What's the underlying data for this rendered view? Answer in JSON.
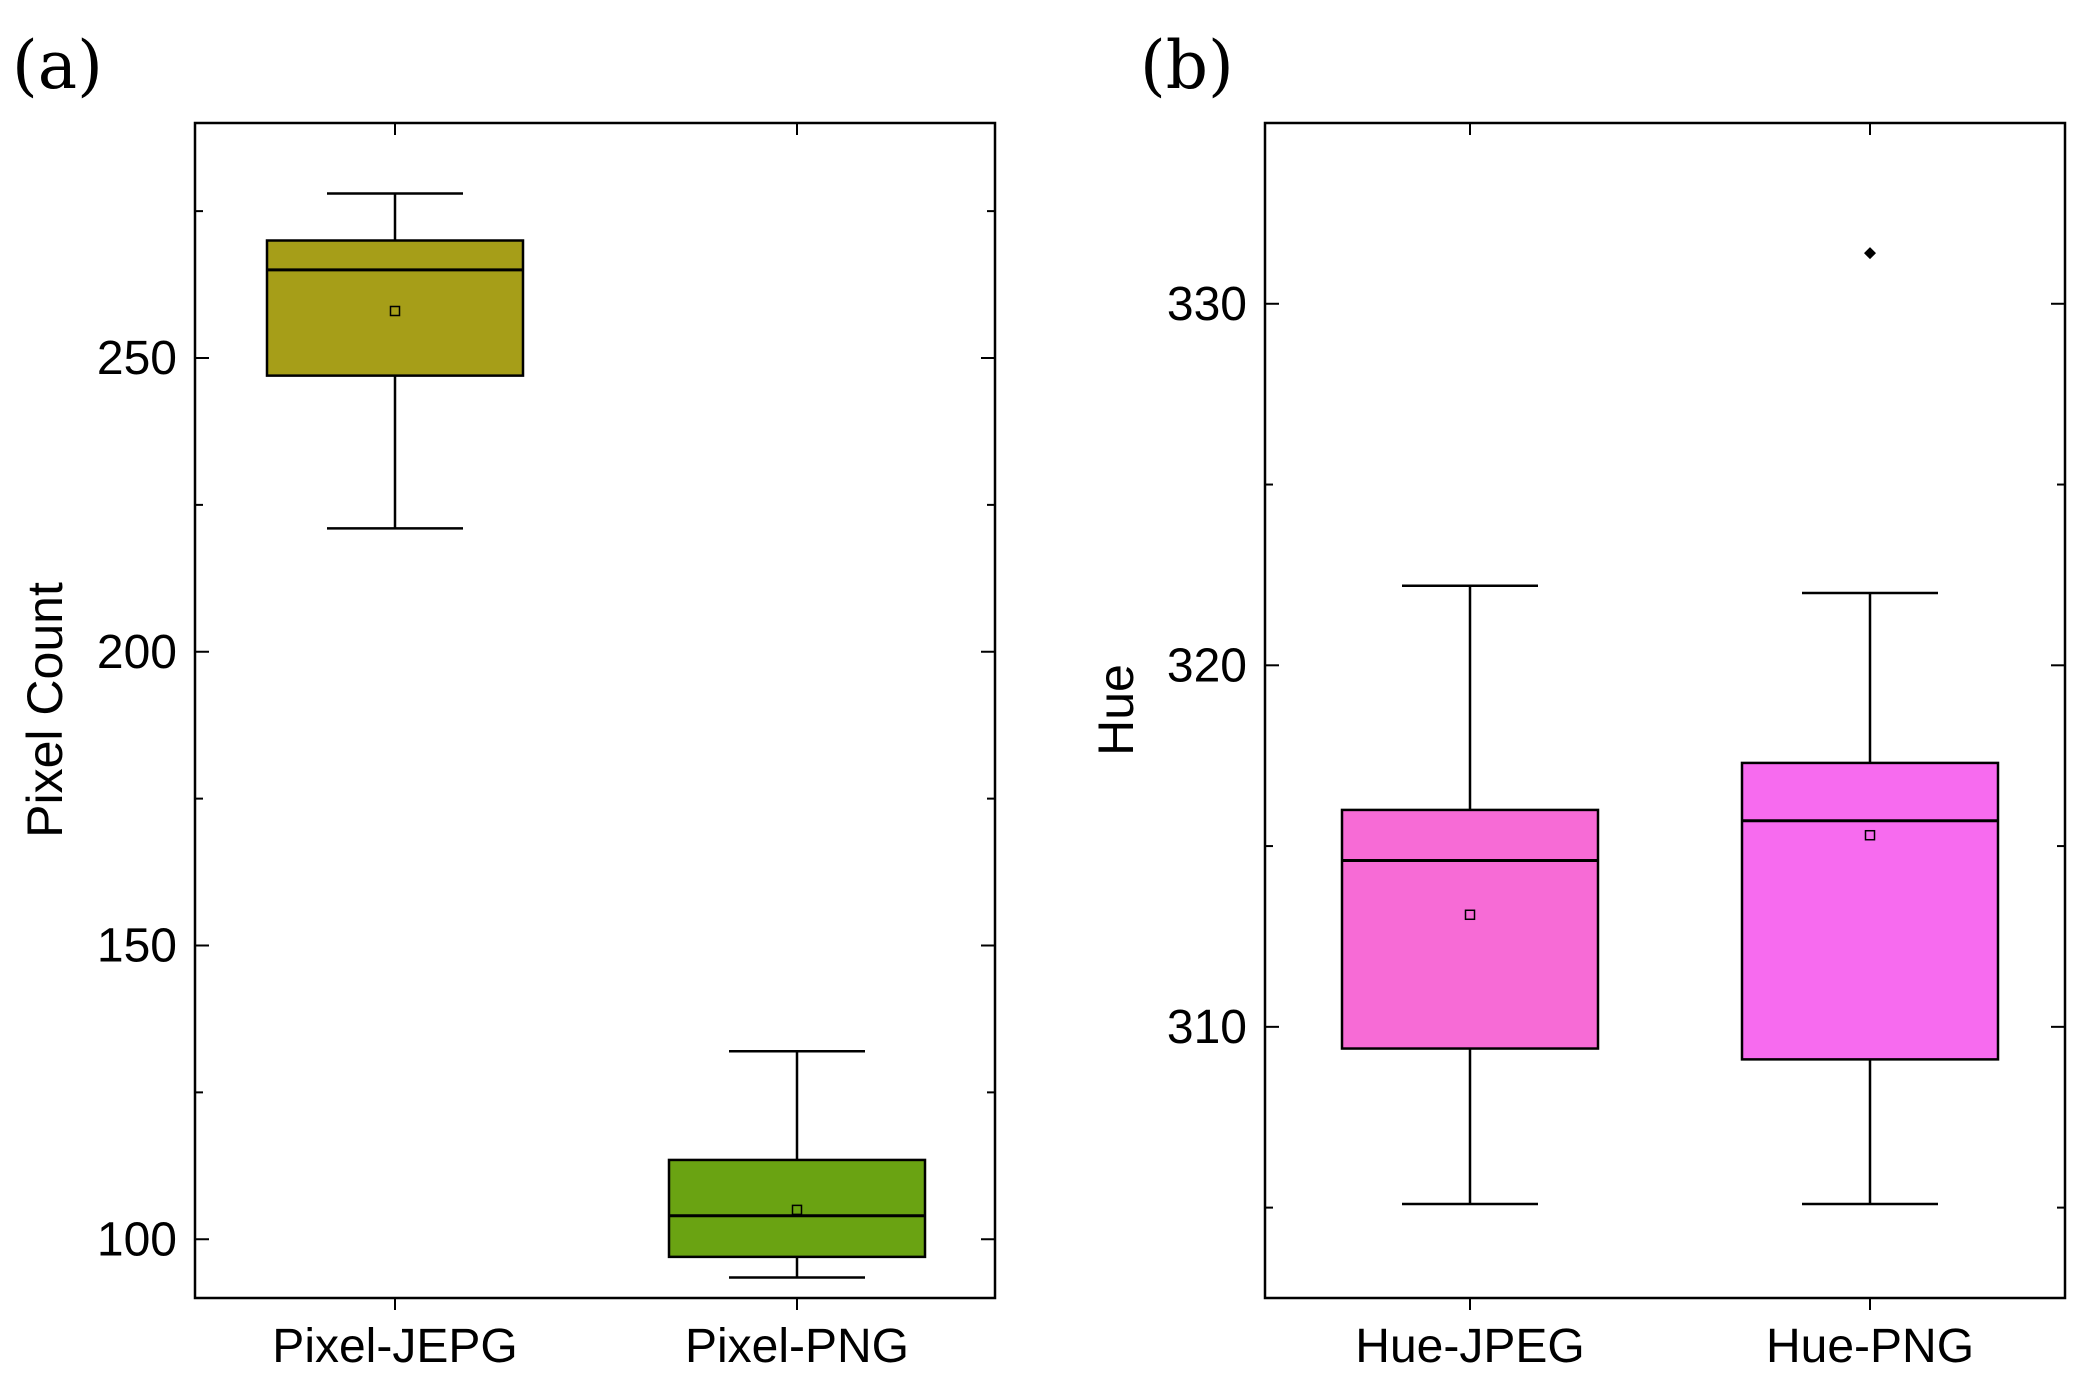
{
  "chart_data": [
    {
      "type": "box",
      "panel_label": "(a)",
      "xlabel": "",
      "ylabel": "Pixel Count",
      "ylim": [
        90,
        290
      ],
      "yticks": [
        100,
        150,
        200,
        250
      ],
      "yticklabels": [
        "100",
        "150",
        "200",
        "250"
      ],
      "categories": [
        "Pixel-JEPG",
        "Pixel-PNG"
      ],
      "boxes": [
        {
          "name": "Pixel-JEPG",
          "color": "#a69e18",
          "whisker_low": 221,
          "q1": 247,
          "median": 265,
          "q3": 270,
          "whisker_high": 278,
          "mean": 258,
          "outliers": []
        },
        {
          "name": "Pixel-PNG",
          "color": "#6aa312",
          "whisker_low": 93.5,
          "q1": 97,
          "median": 104,
          "q3": 113.5,
          "whisker_high": 132,
          "mean": 105,
          "outliers": []
        }
      ]
    },
    {
      "type": "box",
      "panel_label": "(b)",
      "xlabel": "",
      "ylabel": "Hue",
      "ylim": [
        302.5,
        335
      ],
      "yticks": [
        310,
        320,
        330
      ],
      "yticklabels": [
        "310",
        "320",
        "330"
      ],
      "categories": [
        "Hue-JPEG",
        "Hue-PNG"
      ],
      "boxes": [
        {
          "name": "Hue-JPEG",
          "color": "#f76bd6",
          "whisker_low": 305.1,
          "q1": 309.4,
          "median": 314.6,
          "q3": 316,
          "whisker_high": 322.2,
          "mean": 313.1,
          "outliers": []
        },
        {
          "name": "Hue-PNG",
          "color": "#f76bef",
          "whisker_low": 305.1,
          "q1": 309.1,
          "median": 315.7,
          "q3": 317.3,
          "whisker_high": 322,
          "mean": 315.3,
          "outliers": [
            331.4
          ]
        }
      ]
    }
  ]
}
